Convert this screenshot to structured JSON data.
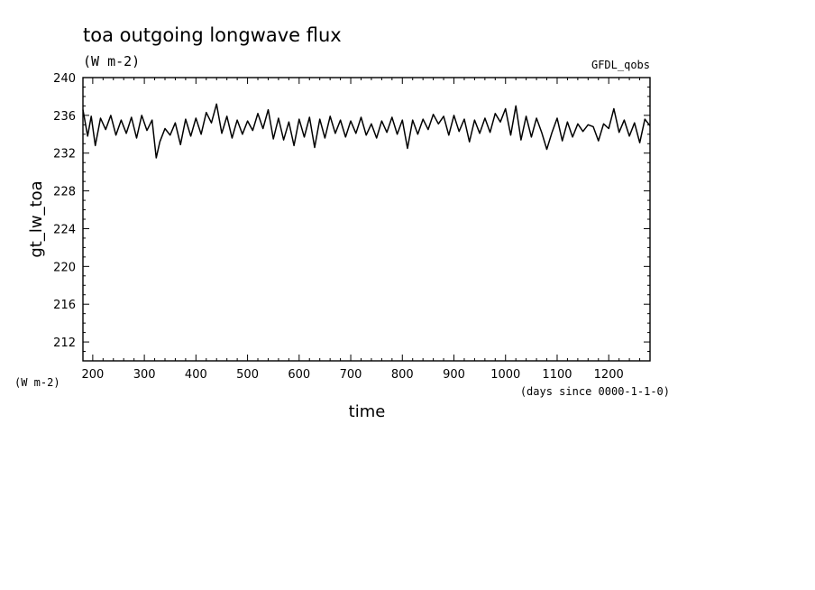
{
  "chart_data": {
    "type": "line",
    "title": "toa outgoing longwave flux",
    "subtitle": "(W m-2)",
    "source_label": "GFDL_qobs",
    "ylabel": "gt_lw_toa",
    "y_units_label": "(W m-2)",
    "xlabel": "time",
    "x_units_label": "(days since 0000-1-1-0)",
    "xlim": [
      181,
      1280
    ],
    "ylim": [
      210,
      240
    ],
    "x_ticks": [
      200,
      300,
      400,
      500,
      600,
      700,
      800,
      900,
      1000,
      1100,
      1200
    ],
    "x_tick_labels": [
      "200",
      "300",
      "400",
      "500",
      "600",
      "700",
      "800",
      "900",
      "1000",
      "1100",
      "1200"
    ],
    "y_ticks": [
      212,
      216,
      220,
      224,
      228,
      232,
      236,
      240
    ],
    "y_tick_labels": [
      "212",
      "216",
      "220",
      "224",
      "228",
      "232",
      "236",
      "240"
    ],
    "grid": false,
    "series": [
      {
        "x": [
          181,
          190,
          197,
          205,
          215,
          225,
          235,
          245,
          255,
          265,
          275,
          285,
          295,
          305,
          315,
          323,
          330,
          340,
          350,
          360,
          370,
          380,
          390,
          400,
          410,
          420,
          430,
          440,
          450,
          460,
          470,
          480,
          490,
          500,
          510,
          520,
          530,
          540,
          550,
          560,
          570,
          580,
          590,
          600,
          610,
          620,
          630,
          640,
          650,
          660,
          670,
          680,
          690,
          700,
          710,
          720,
          730,
          740,
          750,
          760,
          770,
          780,
          790,
          800,
          810,
          820,
          830,
          840,
          850,
          860,
          870,
          880,
          890,
          900,
          910,
          920,
          930,
          940,
          950,
          960,
          970,
          980,
          990,
          1000,
          1010,
          1020,
          1030,
          1040,
          1050,
          1060,
          1070,
          1080,
          1090,
          1100,
          1110,
          1120,
          1130,
          1140,
          1150,
          1160,
          1170,
          1180,
          1190,
          1200,
          1210,
          1220,
          1230,
          1240,
          1250,
          1260,
          1270,
          1280
        ],
        "y": [
          236.6,
          233.8,
          235.9,
          232.8,
          235.7,
          234.5,
          236.0,
          233.9,
          235.5,
          234.1,
          235.8,
          233.6,
          236.0,
          234.4,
          235.5,
          231.5,
          233.2,
          234.6,
          233.9,
          235.2,
          232.9,
          235.6,
          233.8,
          235.7,
          234.0,
          236.3,
          235.2,
          237.2,
          234.1,
          235.9,
          233.6,
          235.5,
          234.0,
          235.4,
          234.4,
          236.2,
          234.6,
          236.6,
          233.5,
          235.7,
          233.4,
          235.3,
          232.8,
          235.6,
          233.7,
          235.8,
          232.6,
          235.6,
          233.6,
          235.9,
          234.1,
          235.5,
          233.7,
          235.4,
          234.1,
          235.8,
          233.9,
          235.1,
          233.6,
          235.4,
          234.2,
          235.8,
          234.0,
          235.5,
          232.5,
          235.5,
          234.0,
          235.6,
          234.5,
          236.1,
          235.1,
          235.9,
          233.9,
          236.0,
          234.3,
          235.6,
          233.2,
          235.5,
          234.1,
          235.7,
          234.2,
          236.2,
          235.3,
          236.7,
          233.9,
          237.0,
          233.4,
          235.9,
          233.7,
          235.7,
          234.2,
          232.4,
          234.2,
          235.7,
          233.3,
          235.3,
          233.7,
          235.1,
          234.3,
          235.0,
          234.8,
          233.3,
          235.1,
          234.6,
          236.7,
          234.2,
          235.5,
          233.8,
          235.2,
          233.1,
          235.6,
          234.9
        ]
      }
    ]
  }
}
